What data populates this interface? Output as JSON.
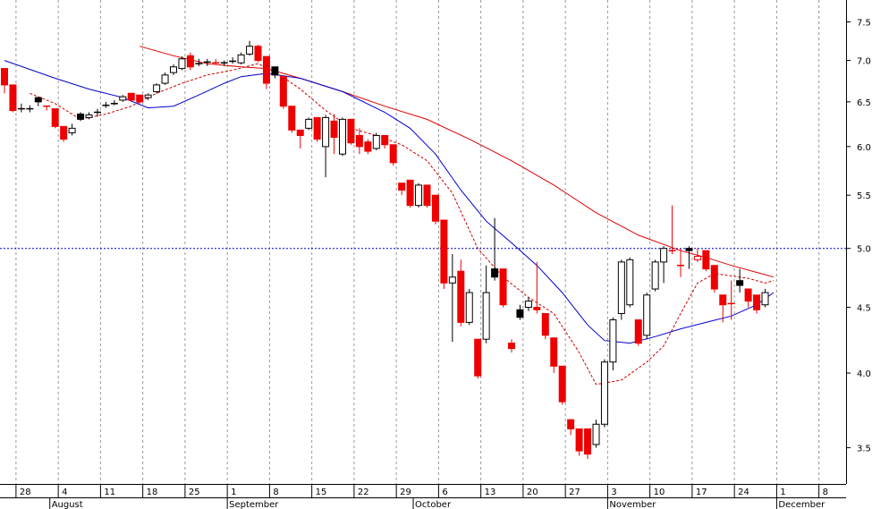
{
  "chart_data": {
    "type": "candlestick",
    "y_scale": "log",
    "ylim": [
      3.28,
      7.8
    ],
    "y_ticks": [
      {
        "value": 3.5,
        "label": "3.5"
      },
      {
        "value": 4.0,
        "label": "4.0"
      },
      {
        "value": 4.5,
        "label": "4.5"
      },
      {
        "value": 5.0,
        "label": "5.0"
      },
      {
        "value": 5.5,
        "label": "5.5"
      },
      {
        "value": 6.0,
        "label": "6.0"
      },
      {
        "value": 6.5,
        "label": "6.5"
      },
      {
        "value": 7.0,
        "label": "7.0"
      },
      {
        "value": 7.5,
        "label": "7.5"
      }
    ],
    "x_day_labels": [
      {
        "label": "28",
        "index": 2
      },
      {
        "label": "4",
        "index": 7
      },
      {
        "label": "11",
        "index": 12
      },
      {
        "label": "18",
        "index": 17
      },
      {
        "label": "25",
        "index": 22
      },
      {
        "label": "1",
        "index": 27
      },
      {
        "label": "8",
        "index": 32
      },
      {
        "label": "15",
        "index": 37
      },
      {
        "label": "22",
        "index": 42
      },
      {
        "label": "29",
        "index": 47
      },
      {
        "label": "6",
        "index": 52
      },
      {
        "label": "13",
        "index": 57
      },
      {
        "label": "20",
        "index": 62
      },
      {
        "label": "27",
        "index": 67
      },
      {
        "label": "3",
        "index": 72
      },
      {
        "label": "10",
        "index": 77
      },
      {
        "label": "17",
        "index": 82
      },
      {
        "label": "24",
        "index": 87
      },
      {
        "label": "1",
        "index": 92
      },
      {
        "label": "8",
        "index": 97
      }
    ],
    "x_month_labels": [
      {
        "label": "August",
        "index": 6
      },
      {
        "label": "September",
        "index": 27
      },
      {
        "label": "October",
        "index": 49
      },
      {
        "label": "November",
        "index": 72
      },
      {
        "label": "December",
        "index": 92
      }
    ],
    "reference_line": {
      "value": 5.0,
      "color": "#0000cc",
      "style": "dotted"
    },
    "colors": {
      "up": "#ffffff",
      "down": "#ee0000",
      "outline": "#000000",
      "doji": "#000000",
      "ma_blue": "#0000cc",
      "ma_red": "#dd0000",
      "ma_dashed": "#cc0000",
      "grid": "#999999"
    },
    "candles": [
      {
        "o": 6.9,
        "h": 6.9,
        "l": 6.6,
        "c": 6.7,
        "t": "down"
      },
      {
        "o": 6.7,
        "h": 6.7,
        "l": 6.38,
        "c": 6.4,
        "t": "down"
      },
      {
        "o": 6.42,
        "h": 6.48,
        "l": 6.38,
        "c": 6.42,
        "t": "doji"
      },
      {
        "o": 6.42,
        "h": 6.46,
        "l": 6.38,
        "c": 6.42,
        "t": "doji"
      },
      {
        "o": 6.5,
        "h": 6.56,
        "l": 6.45,
        "c": 6.55,
        "t": "black"
      },
      {
        "o": 6.45,
        "h": 6.45,
        "l": 6.4,
        "c": 6.45,
        "t": "doji_red"
      },
      {
        "o": 6.42,
        "h": 6.42,
        "l": 6.2,
        "c": 6.22,
        "t": "down"
      },
      {
        "o": 6.22,
        "h": 6.22,
        "l": 6.05,
        "c": 6.08,
        "t": "down"
      },
      {
        "o": 6.15,
        "h": 6.25,
        "l": 6.12,
        "c": 6.2,
        "t": "up"
      },
      {
        "o": 6.3,
        "h": 6.38,
        "l": 6.28,
        "c": 6.36,
        "t": "black"
      },
      {
        "o": 6.32,
        "h": 6.38,
        "l": 6.3,
        "c": 6.35,
        "t": "up"
      },
      {
        "o": 6.38,
        "h": 6.42,
        "l": 6.33,
        "c": 6.38,
        "t": "doji"
      },
      {
        "o": 6.46,
        "h": 6.5,
        "l": 6.43,
        "c": 6.46,
        "t": "doji"
      },
      {
        "o": 6.48,
        "h": 6.52,
        "l": 6.46,
        "c": 6.48,
        "t": "doji"
      },
      {
        "o": 6.52,
        "h": 6.58,
        "l": 6.5,
        "c": 6.56,
        "t": "up"
      },
      {
        "o": 6.6,
        "h": 6.6,
        "l": 6.5,
        "c": 6.52,
        "t": "down"
      },
      {
        "o": 6.58,
        "h": 6.58,
        "l": 6.48,
        "c": 6.5,
        "t": "down"
      },
      {
        "o": 6.55,
        "h": 6.6,
        "l": 6.52,
        "c": 6.58,
        "t": "up"
      },
      {
        "o": 6.62,
        "h": 6.72,
        "l": 6.6,
        "c": 6.7,
        "t": "up"
      },
      {
        "o": 6.72,
        "h": 6.85,
        "l": 6.7,
        "c": 6.82,
        "t": "up"
      },
      {
        "o": 6.85,
        "h": 6.95,
        "l": 6.82,
        "c": 6.92,
        "t": "up"
      },
      {
        "o": 6.9,
        "h": 7.05,
        "l": 6.88,
        "c": 7.02,
        "t": "up"
      },
      {
        "o": 7.06,
        "h": 7.1,
        "l": 6.88,
        "c": 6.92,
        "t": "down"
      },
      {
        "o": 6.96,
        "h": 7.02,
        "l": 6.93,
        "c": 6.96,
        "t": "doji"
      },
      {
        "o": 6.98,
        "h": 7.02,
        "l": 6.93,
        "c": 6.98,
        "t": "doji"
      },
      {
        "o": 6.97,
        "h": 7.02,
        "l": 6.95,
        "c": 6.97,
        "t": "doji_red"
      },
      {
        "o": 6.97,
        "h": 7.0,
        "l": 6.93,
        "c": 6.97,
        "t": "doji"
      },
      {
        "o": 6.99,
        "h": 7.04,
        "l": 6.96,
        "c": 6.99,
        "t": "doji"
      },
      {
        "o": 6.97,
        "h": 7.1,
        "l": 6.95,
        "c": 7.07,
        "t": "up"
      },
      {
        "o": 7.08,
        "h": 7.25,
        "l": 7.06,
        "c": 7.18,
        "t": "up"
      },
      {
        "o": 7.18,
        "h": 7.2,
        "l": 6.98,
        "c": 7.0,
        "t": "down"
      },
      {
        "o": 7.05,
        "h": 7.05,
        "l": 6.65,
        "c": 6.72,
        "t": "down"
      },
      {
        "o": 6.92,
        "h": 6.92,
        "l": 6.78,
        "c": 6.82,
        "t": "black"
      },
      {
        "o": 6.8,
        "h": 6.8,
        "l": 6.42,
        "c": 6.45,
        "t": "down"
      },
      {
        "o": 6.45,
        "h": 6.45,
        "l": 6.15,
        "c": 6.18,
        "t": "down"
      },
      {
        "o": 6.18,
        "h": 6.18,
        "l": 5.98,
        "c": 6.12,
        "t": "down"
      },
      {
        "o": 6.2,
        "h": 6.32,
        "l": 6.18,
        "c": 6.3,
        "t": "up"
      },
      {
        "o": 6.32,
        "h": 6.32,
        "l": 6.05,
        "c": 6.08,
        "t": "down"
      },
      {
        "o": 6.0,
        "h": 6.35,
        "l": 5.68,
        "c": 6.32,
        "t": "up"
      },
      {
        "o": 6.28,
        "h": 6.36,
        "l": 5.92,
        "c": 6.1,
        "t": "down"
      },
      {
        "o": 5.92,
        "h": 6.32,
        "l": 5.9,
        "c": 6.3,
        "t": "up"
      },
      {
        "o": 6.3,
        "h": 6.3,
        "l": 6.02,
        "c": 6.04,
        "t": "down"
      },
      {
        "o": 6.12,
        "h": 6.2,
        "l": 5.92,
        "c": 6.0,
        "t": "down"
      },
      {
        "o": 6.05,
        "h": 6.08,
        "l": 5.92,
        "c": 5.95,
        "t": "down"
      },
      {
        "o": 5.98,
        "h": 6.15,
        "l": 5.96,
        "c": 6.12,
        "t": "up"
      },
      {
        "o": 6.12,
        "h": 6.12,
        "l": 5.98,
        "c": 6.02,
        "t": "down"
      },
      {
        "o": 6.02,
        "h": 6.02,
        "l": 5.8,
        "c": 5.83,
        "t": "down"
      },
      {
        "o": 5.62,
        "h": 5.62,
        "l": 5.5,
        "c": 5.55,
        "t": "down"
      },
      {
        "o": 5.65,
        "h": 5.65,
        "l": 5.38,
        "c": 5.4,
        "t": "down"
      },
      {
        "o": 5.4,
        "h": 5.62,
        "l": 5.38,
        "c": 5.6,
        "t": "up"
      },
      {
        "o": 5.6,
        "h": 5.6,
        "l": 5.38,
        "c": 5.4,
        "t": "down"
      },
      {
        "o": 5.5,
        "h": 5.5,
        "l": 5.22,
        "c": 5.25,
        "t": "down"
      },
      {
        "o": 5.26,
        "h": 5.26,
        "l": 4.65,
        "c": 4.7,
        "t": "down"
      },
      {
        "o": 4.7,
        "h": 4.95,
        "l": 4.23,
        "c": 4.75,
        "t": "up"
      },
      {
        "o": 4.8,
        "h": 4.9,
        "l": 4.35,
        "c": 4.38,
        "t": "down"
      },
      {
        "o": 4.38,
        "h": 4.65,
        "l": 4.36,
        "c": 4.62,
        "t": "up"
      },
      {
        "o": 4.25,
        "h": 4.25,
        "l": 3.96,
        "c": 3.98,
        "t": "down"
      },
      {
        "o": 4.62,
        "h": 4.85,
        "l": 4.22,
        "c": 4.25,
        "t": "up"
      },
      {
        "o": 4.82,
        "h": 5.28,
        "l": 4.72,
        "c": 4.75,
        "t": "black"
      },
      {
        "o": 4.82,
        "h": 4.82,
        "l": 4.5,
        "c": 4.52,
        "t": "down"
      },
      {
        "o": 4.22,
        "h": 4.25,
        "l": 4.15,
        "c": 4.18,
        "t": "down"
      },
      {
        "o": 4.48,
        "h": 4.52,
        "l": 4.4,
        "c": 4.42,
        "t": "black"
      },
      {
        "o": 4.5,
        "h": 4.58,
        "l": 4.47,
        "c": 4.55,
        "t": "up"
      },
      {
        "o": 4.48,
        "h": 4.88,
        "l": 4.45,
        "c": 4.5,
        "t": "down"
      },
      {
        "o": 4.45,
        "h": 4.45,
        "l": 4.25,
        "c": 4.28,
        "t": "down"
      },
      {
        "o": 4.26,
        "h": 4.26,
        "l": 4.0,
        "c": 4.05,
        "t": "down"
      },
      {
        "o": 4.05,
        "h": 4.05,
        "l": 3.78,
        "c": 3.8,
        "t": "down"
      },
      {
        "o": 3.68,
        "h": 3.68,
        "l": 3.58,
        "c": 3.62,
        "t": "down"
      },
      {
        "o": 3.62,
        "h": 3.62,
        "l": 3.45,
        "c": 3.48,
        "t": "down"
      },
      {
        "o": 3.62,
        "h": 3.62,
        "l": 3.43,
        "c": 3.46,
        "t": "down"
      },
      {
        "o": 3.52,
        "h": 3.68,
        "l": 3.5,
        "c": 3.65,
        "t": "up"
      },
      {
        "o": 3.65,
        "h": 4.1,
        "l": 3.63,
        "c": 4.08,
        "t": "up"
      },
      {
        "o": 4.08,
        "h": 4.42,
        "l": 4.02,
        "c": 4.4,
        "t": "up"
      },
      {
        "o": 4.45,
        "h": 4.9,
        "l": 4.4,
        "c": 4.88,
        "t": "up"
      },
      {
        "o": 4.52,
        "h": 4.92,
        "l": 4.5,
        "c": 4.9,
        "t": "up"
      },
      {
        "o": 4.4,
        "h": 4.4,
        "l": 4.2,
        "c": 4.22,
        "t": "down"
      },
      {
        "o": 4.28,
        "h": 4.62,
        "l": 4.25,
        "c": 4.6,
        "t": "up"
      },
      {
        "o": 4.65,
        "h": 4.9,
        "l": 4.63,
        "c": 4.88,
        "t": "up"
      },
      {
        "o": 4.88,
        "h": 5.02,
        "l": 4.7,
        "c": 5.0,
        "t": "up"
      },
      {
        "o": 4.98,
        "h": 5.4,
        "l": 4.95,
        "c": 4.98,
        "t": "doji_red"
      },
      {
        "o": 4.85,
        "h": 5.0,
        "l": 4.75,
        "c": 4.85,
        "t": "doji_red"
      },
      {
        "o": 5.0,
        "h": 5.02,
        "l": 4.82,
        "c": 4.98,
        "t": "black"
      },
      {
        "o": 4.93,
        "h": 5.0,
        "l": 4.88,
        "c": 4.9,
        "t": "down_hollow"
      },
      {
        "o": 4.98,
        "h": 4.98,
        "l": 4.8,
        "c": 4.82,
        "t": "down"
      },
      {
        "o": 4.85,
        "h": 4.85,
        "l": 4.62,
        "c": 4.65,
        "t": "down"
      },
      {
        "o": 4.6,
        "h": 4.6,
        "l": 4.38,
        "c": 4.52,
        "t": "down"
      },
      {
        "o": 4.53,
        "h": 4.72,
        "l": 4.4,
        "c": 4.53,
        "t": "doji_red"
      },
      {
        "o": 4.72,
        "h": 4.82,
        "l": 4.62,
        "c": 4.68,
        "t": "black"
      },
      {
        "o": 4.65,
        "h": 4.65,
        "l": 4.5,
        "c": 4.55,
        "t": "down"
      },
      {
        "o": 4.6,
        "h": 4.6,
        "l": 4.45,
        "c": 4.48,
        "t": "down"
      },
      {
        "o": 4.52,
        "h": 4.65,
        "l": 4.5,
        "c": 4.62,
        "t": "up"
      }
    ],
    "ma_blue": [
      [
        0,
        7.0
      ],
      [
        6,
        6.78
      ],
      [
        10,
        6.65
      ],
      [
        14,
        6.55
      ],
      [
        17,
        6.43
      ],
      [
        20,
        6.45
      ],
      [
        23,
        6.58
      ],
      [
        26,
        6.72
      ],
      [
        28,
        6.8
      ],
      [
        31,
        6.84
      ],
      [
        35,
        6.78
      ],
      [
        40,
        6.62
      ],
      [
        45,
        6.38
      ],
      [
        48,
        6.2
      ],
      [
        51,
        5.92
      ],
      [
        54,
        5.55
      ],
      [
        57,
        5.25
      ],
      [
        60,
        5.05
      ],
      [
        63,
        4.85
      ],
      [
        66,
        4.62
      ],
      [
        69,
        4.36
      ],
      [
        71,
        4.24
      ],
      [
        74,
        4.22
      ],
      [
        77,
        4.27
      ],
      [
        80,
        4.33
      ],
      [
        83,
        4.38
      ],
      [
        86,
        4.43
      ],
      [
        89,
        4.52
      ],
      [
        91,
        4.62
      ]
    ],
    "ma_red": [
      [
        16,
        7.18
      ],
      [
        20,
        7.06
      ],
      [
        24,
        6.96
      ],
      [
        28,
        6.92
      ],
      [
        31,
        6.9
      ],
      [
        35,
        6.78
      ],
      [
        40,
        6.62
      ],
      [
        45,
        6.45
      ],
      [
        50,
        6.3
      ],
      [
        55,
        6.08
      ],
      [
        60,
        5.85
      ],
      [
        65,
        5.6
      ],
      [
        70,
        5.33
      ],
      [
        75,
        5.12
      ],
      [
        80,
        4.98
      ],
      [
        83,
        4.92
      ],
      [
        86,
        4.85
      ],
      [
        89,
        4.79
      ],
      [
        91,
        4.75
      ]
    ],
    "ma_dashed": [
      [
        3,
        6.6
      ],
      [
        6,
        6.48
      ],
      [
        9,
        6.3
      ],
      [
        12,
        6.36
      ],
      [
        15,
        6.45
      ],
      [
        18,
        6.6
      ],
      [
        21,
        6.72
      ],
      [
        24,
        6.82
      ],
      [
        27,
        6.88
      ],
      [
        30,
        6.96
      ],
      [
        32,
        6.86
      ],
      [
        35,
        6.65
      ],
      [
        38,
        6.4
      ],
      [
        41,
        6.2
      ],
      [
        44,
        6.12
      ],
      [
        47,
        6.02
      ],
      [
        50,
        5.85
      ],
      [
        53,
        5.52
      ],
      [
        56,
        5.0
      ],
      [
        59,
        4.75
      ],
      [
        62,
        4.58
      ],
      [
        65,
        4.45
      ],
      [
        68,
        4.15
      ],
      [
        70,
        3.92
      ],
      [
        73,
        3.95
      ],
      [
        76,
        4.08
      ],
      [
        78,
        4.2
      ],
      [
        80,
        4.45
      ],
      [
        82,
        4.7
      ],
      [
        84,
        4.78
      ],
      [
        86,
        4.76
      ],
      [
        88,
        4.74
      ],
      [
        90,
        4.7
      ],
      [
        91,
        4.72
      ]
    ]
  }
}
